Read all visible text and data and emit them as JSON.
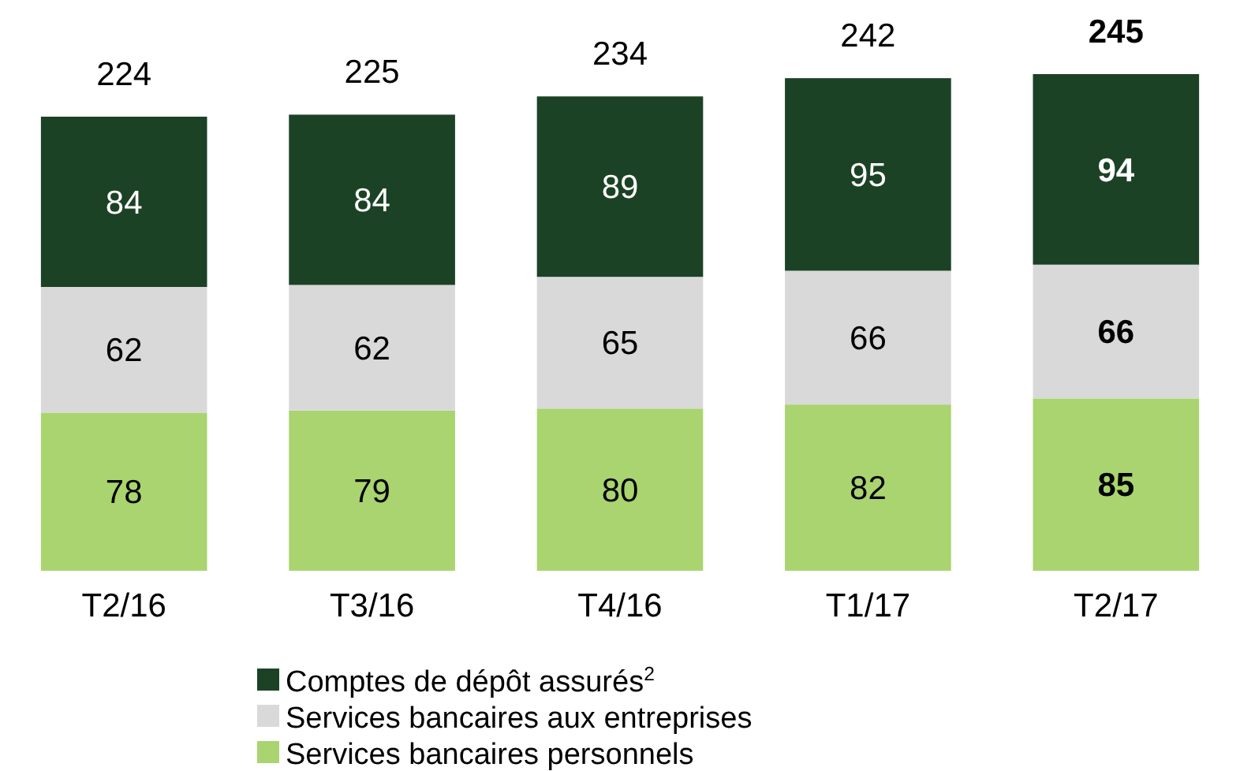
{
  "chart_data": {
    "type": "bar",
    "stacked": true,
    "data_labels": true,
    "legend": "bottom",
    "categories": [
      "T2/16",
      "T3/16",
      "T4/16",
      "T1/17",
      "T2/17"
    ],
    "series": [
      {
        "name": "Services bancaires personnels",
        "color": "#a9d46f",
        "values": [
          78,
          79,
          80,
          82,
          85
        ]
      },
      {
        "name": "Services bancaires aux entreprises",
        "color": "#d9d9d9",
        "values": [
          62,
          62,
          65,
          66,
          66
        ]
      },
      {
        "name": "Comptes de dépôt assurés$^{2}$",
        "color": "#1c4226",
        "values": [
          84,
          84,
          89,
          95,
          94
        ]
      }
    ],
    "totals": [
      "224",
      "225",
      "234",
      "242",
      "245"
    ]
  }
}
